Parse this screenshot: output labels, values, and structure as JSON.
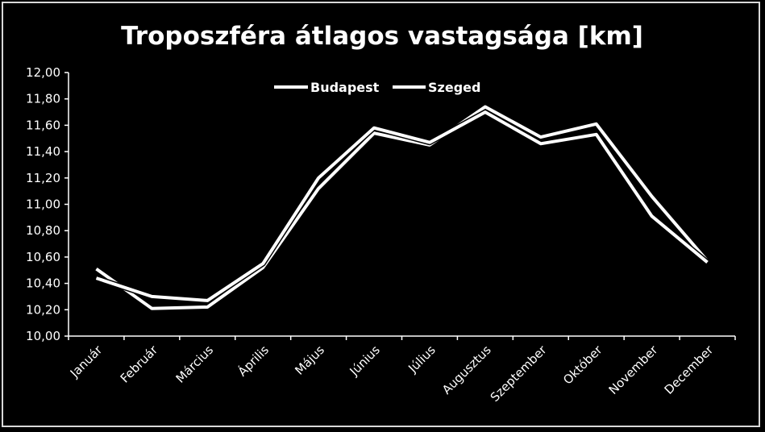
{
  "chart_data": {
    "type": "line",
    "title": "Troposzféra átlagos vastagsága [km]",
    "xlabel": "",
    "ylabel": "",
    "categories": [
      "Január",
      "Február",
      "Március",
      "Április",
      "Május",
      "Június",
      "Július",
      "Augusztus",
      "Szeptember",
      "Október",
      "November",
      "December"
    ],
    "series": [
      {
        "name": "Budapest",
        "values": [
          10.51,
          10.21,
          10.22,
          10.52,
          11.12,
          11.54,
          11.45,
          11.74,
          11.51,
          11.61,
          11.06,
          10.57
        ]
      },
      {
        "name": "Szeged",
        "values": [
          10.44,
          10.3,
          10.27,
          10.55,
          11.2,
          11.58,
          11.47,
          11.7,
          11.46,
          11.53,
          10.91,
          10.56
        ]
      }
    ],
    "ylim": [
      10.0,
      12.0
    ],
    "y_ticks": [
      "10,00",
      "10,20",
      "10,40",
      "10,60",
      "10,80",
      "11,00",
      "11,20",
      "11,40",
      "11,60",
      "11,80",
      "12,00"
    ],
    "legend_position": "top",
    "grid": false,
    "colors": {
      "background": "#000000",
      "line": "#ffffff",
      "axis": "#ffffff",
      "frame": "#d9d9d9"
    }
  }
}
